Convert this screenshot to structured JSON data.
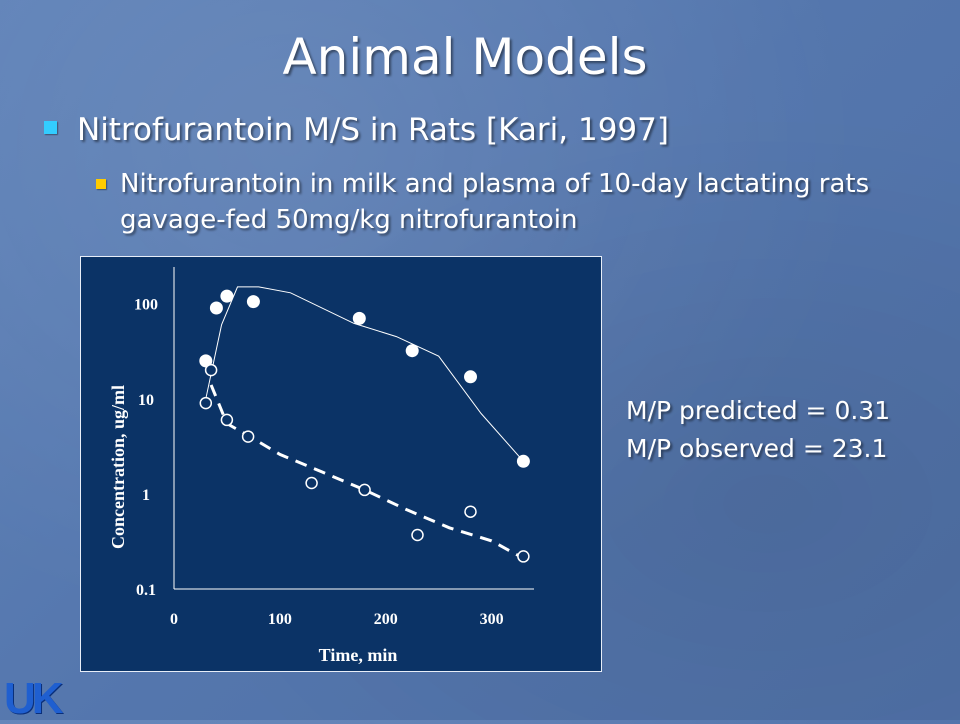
{
  "slide": {
    "title": "Animal Models",
    "bullet1": "Nitrofurantoin M/S in Rats [Kari, 1997]",
    "bullet2": "Nitrofurantoin in  milk and plasma of 10-day lactating rats gavage-fed 50mg/kg nitrofurantoin",
    "note_predicted": "M/P predicted = 0.31",
    "note_observed": "M/P observed = 23.1",
    "logo_text": "UK"
  },
  "chart_data": {
    "type": "scatter",
    "xlabel": "Time, min",
    "ylabel": "Concentration, ug/ml",
    "y_scale": "log",
    "xlim": [
      0,
      340
    ],
    "ylim": [
      0.1,
      200
    ],
    "x_ticks": [
      0,
      100,
      200,
      300
    ],
    "y_ticks": [
      0.1,
      1,
      10,
      100
    ],
    "grid": false,
    "colors": {
      "background": "#0b3366",
      "marks": "#ffffff"
    },
    "series": [
      {
        "marker": "filled-circle",
        "line": "solid",
        "points": [
          [
            30,
            25
          ],
          [
            40,
            90
          ],
          [
            50,
            120
          ],
          [
            75,
            105
          ],
          [
            175,
            70
          ],
          [
            225,
            32
          ],
          [
            280,
            17
          ],
          [
            330,
            2.2
          ]
        ],
        "fit": [
          [
            30,
            10
          ],
          [
            45,
            60
          ],
          [
            60,
            150
          ],
          [
            80,
            150
          ],
          [
            110,
            130
          ],
          [
            170,
            62
          ],
          [
            210,
            45
          ],
          [
            250,
            28
          ],
          [
            290,
            7
          ],
          [
            330,
            2.2
          ]
        ]
      },
      {
        "marker": "open-circle",
        "line": "dashed",
        "points": [
          [
            30,
            9
          ],
          [
            35,
            20
          ],
          [
            50,
            6
          ],
          [
            70,
            4
          ],
          [
            130,
            1.3
          ],
          [
            180,
            1.1
          ],
          [
            230,
            0.37
          ],
          [
            280,
            0.65
          ],
          [
            330,
            0.22
          ]
        ],
        "fit": [
          [
            35,
            14
          ],
          [
            50,
            5.5
          ],
          [
            75,
            3.8
          ],
          [
            100,
            2.6
          ],
          [
            140,
            1.7
          ],
          [
            180,
            1.1
          ],
          [
            220,
            0.68
          ],
          [
            260,
            0.44
          ],
          [
            300,
            0.32
          ],
          [
            330,
            0.21
          ]
        ]
      }
    ]
  }
}
